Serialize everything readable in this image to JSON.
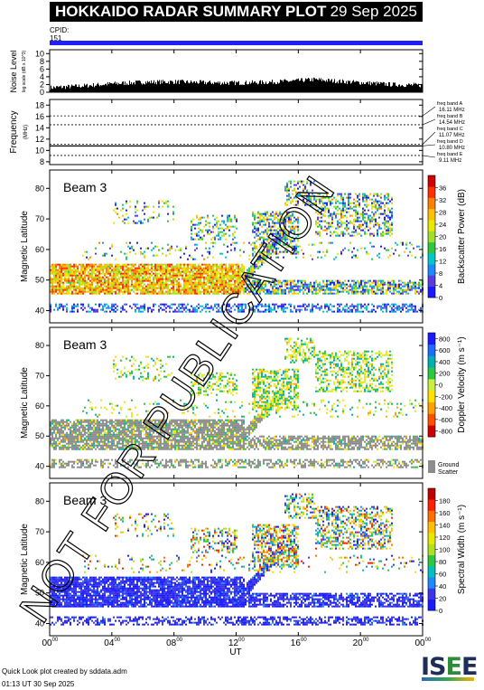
{
  "header": {
    "title": "HOKKAIDO RADAR SUMMARY PLOT",
    "date": "29 Sep 2025"
  },
  "cpid": {
    "label": "CPID:",
    "value": "151"
  },
  "footer": {
    "credit": "Quick Look plot created by sddata.adm",
    "timestamp": "01:13 UT 30 Sep 2025"
  },
  "watermark": "NOT FOR PUBLICATION",
  "logo": {
    "text_a": "IS",
    "text_b": "E",
    "text_c": "E"
  },
  "chart_data": [
    {
      "type": "area",
      "panel": "noise",
      "ylabel": "Noise Level",
      "ylabel_sub": "log scale (dB x 10^3)",
      "yticks": [
        0,
        2,
        4,
        6,
        8,
        10
      ],
      "ylim": [
        0,
        11
      ],
      "xlim": [
        0,
        24
      ],
      "series": [
        {
          "x": [
            0,
            2,
            4,
            6,
            8,
            10,
            12,
            14,
            16,
            17,
            18,
            20,
            22,
            24
          ],
          "values": [
            1.2,
            1.6,
            2.2,
            2.6,
            2.7,
            2.5,
            2.4,
            2.6,
            3.0,
            3.3,
            3.0,
            2.5,
            2.0,
            1.8
          ]
        }
      ]
    },
    {
      "type": "line",
      "panel": "frequency",
      "ylabel": "Frequency",
      "ylabel_sub": "(MHz)",
      "yticks": [
        8,
        10,
        12,
        14,
        16,
        18
      ],
      "ylim": [
        7.5,
        19
      ],
      "xlim": [
        0,
        24
      ],
      "bands": [
        {
          "name": "freq band A",
          "mhz": "16.11 MHz",
          "value": 16.11
        },
        {
          "name": "freq band B",
          "mhz": "14.54 MHz",
          "value": 14.54
        },
        {
          "name": "freq band C",
          "mhz": "11.07 MHz",
          "value": 11.07
        },
        {
          "name": "freq band D",
          "mhz": "10.80 MHz",
          "value": 10.8
        },
        {
          "name": "freq band E",
          "mhz": "9.11 MHz",
          "value": 9.11
        }
      ]
    },
    {
      "type": "heatmap",
      "panel": "power",
      "beam": "Beam  3",
      "ylabel": "Magnetic Latitude",
      "yticks": [
        40,
        50,
        60,
        70,
        80
      ],
      "ylim": [
        36,
        86
      ],
      "xlim": [
        0,
        24
      ],
      "colorbar_label": "Backscatter Power (dB)",
      "colorbar_ticks": [
        "0",
        "4",
        "8",
        "12",
        "16",
        "20",
        "24",
        "28",
        "32",
        "36"
      ],
      "colorbar_colors": [
        "#1a1aff",
        "#5a3ce0",
        "#1e88ff",
        "#00c8c8",
        "#2ec840",
        "#9ee02a",
        "#e8e800",
        "#ffc000",
        "#ff8000",
        "#ff3000",
        "#d00000"
      ]
    },
    {
      "type": "heatmap",
      "panel": "velocity",
      "beam": "Beam  3",
      "ylabel": "Magnetic Latitude",
      "yticks": [
        40,
        50,
        60,
        70,
        80
      ],
      "ylim": [
        36,
        86
      ],
      "xlim": [
        0,
        24
      ],
      "colorbar_label": "Doppler Velocity (m s⁻¹)",
      "colorbar_ticks": [
        "-800",
        "-600",
        "-400",
        "-200",
        "0",
        "200",
        "400",
        "600",
        "800"
      ],
      "colorbar_colors": [
        "#d00000",
        "#ff5000",
        "#ffa000",
        "#ffe000",
        "#c8f040",
        "#2ec840",
        "#00b0b0",
        "#1e6cff",
        "#1a1aff"
      ],
      "ground_scatter_label": "Ground Scatter",
      "ground_scatter_color": "#8c8c8c"
    },
    {
      "type": "heatmap",
      "panel": "width",
      "beam": "Beam  3",
      "ylabel": "Magnetic Latitude",
      "yticks": [
        40,
        50,
        60,
        70,
        80
      ],
      "ylim": [
        36,
        86
      ],
      "xlim": [
        0,
        24
      ],
      "colorbar_label": "Spectral Width (m s⁻¹)",
      "colorbar_ticks": [
        "0",
        "20",
        "40",
        "60",
        "80",
        "100",
        "120",
        "140",
        "160",
        "180"
      ],
      "colorbar_colors": [
        "#1a1aff",
        "#3d36e8",
        "#1e88ff",
        "#00c0c0",
        "#2ec840",
        "#b0e020",
        "#e8e800",
        "#ffc000",
        "#ff7000",
        "#ff2000",
        "#c00000"
      ]
    }
  ],
  "xaxis": {
    "label": "UT",
    "ticks": [
      {
        "h": "00",
        "m": "00",
        "v": 0
      },
      {
        "h": "04",
        "m": "00",
        "v": 4
      },
      {
        "h": "08",
        "m": "00",
        "v": 8
      },
      {
        "h": "12",
        "m": "00",
        "v": 12
      },
      {
        "h": "16",
        "m": "00",
        "v": 16
      },
      {
        "h": "20",
        "m": "00",
        "v": 20
      },
      {
        "h": "00",
        "m": "00",
        "v": 24
      }
    ]
  }
}
